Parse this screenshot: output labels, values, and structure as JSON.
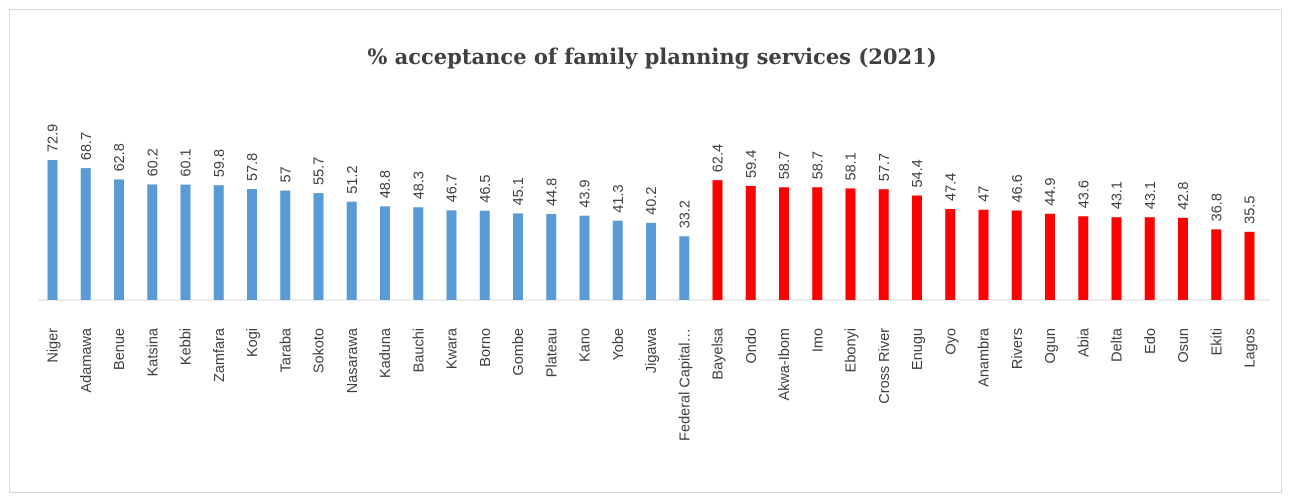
{
  "chart_data": {
    "type": "bar",
    "title": "% acceptance of family planning services  (2021)",
    "xlabel": "",
    "ylabel": "",
    "ylim": [
      0,
      80
    ],
    "grid": false,
    "legend": "none",
    "categories": [
      "Niger",
      "Adamawa",
      "Benue",
      "Katsina",
      "Kebbi",
      "Zamfara",
      "Kogi",
      "Taraba",
      "Sokoto",
      "Nasarawa",
      "Kaduna",
      "Bauchi",
      "Kwara",
      "Borno",
      "Gombe",
      "Plateau",
      "Kano",
      "Yobe",
      "Jigawa",
      "Federal Capital…",
      "Bayelsa",
      "Ondo",
      "Akwa-Ibom",
      "Imo",
      "Ebonyi",
      "Cross River",
      "Enugu",
      "Oyo",
      "Anambra",
      "Rivers",
      "Ogun",
      "Abia",
      "Delta",
      "Edo",
      "Osun",
      "Ekiti",
      "Lagos"
    ],
    "values": [
      72.9,
      68.7,
      62.8,
      60.2,
      60.1,
      59.8,
      57.8,
      57,
      55.7,
      51.2,
      48.8,
      48.3,
      46.7,
      46.5,
      45.1,
      44.8,
      43.9,
      41.3,
      40.2,
      33.2,
      62.4,
      59.4,
      58.7,
      58.7,
      58.1,
      57.7,
      54.4,
      47.4,
      47,
      46.6,
      44.9,
      43.6,
      43.1,
      43.1,
      42.8,
      36.8,
      35.5
    ],
    "value_labels": [
      "72.9",
      "68.7",
      "62.8",
      "60.2",
      "60.1",
      "59.8",
      "57.8",
      "57",
      "55.7",
      "51.2",
      "48.8",
      "48.3",
      "46.7",
      "46.5",
      "45.1",
      "44.8",
      "43.9",
      "41.3",
      "40.2",
      "33.2",
      "62.4",
      "59.4",
      "58.7",
      "58.7",
      "58.1",
      "57.7",
      "54.4",
      "47.4",
      "47",
      "46.6",
      "44.9",
      "43.6",
      "43.1",
      "43.1",
      "42.8",
      "36.8",
      "35.5"
    ],
    "colors": {
      "group_1": "#5b9bd5",
      "group_2": "#ff0000"
    },
    "group_split_index": 20
  }
}
